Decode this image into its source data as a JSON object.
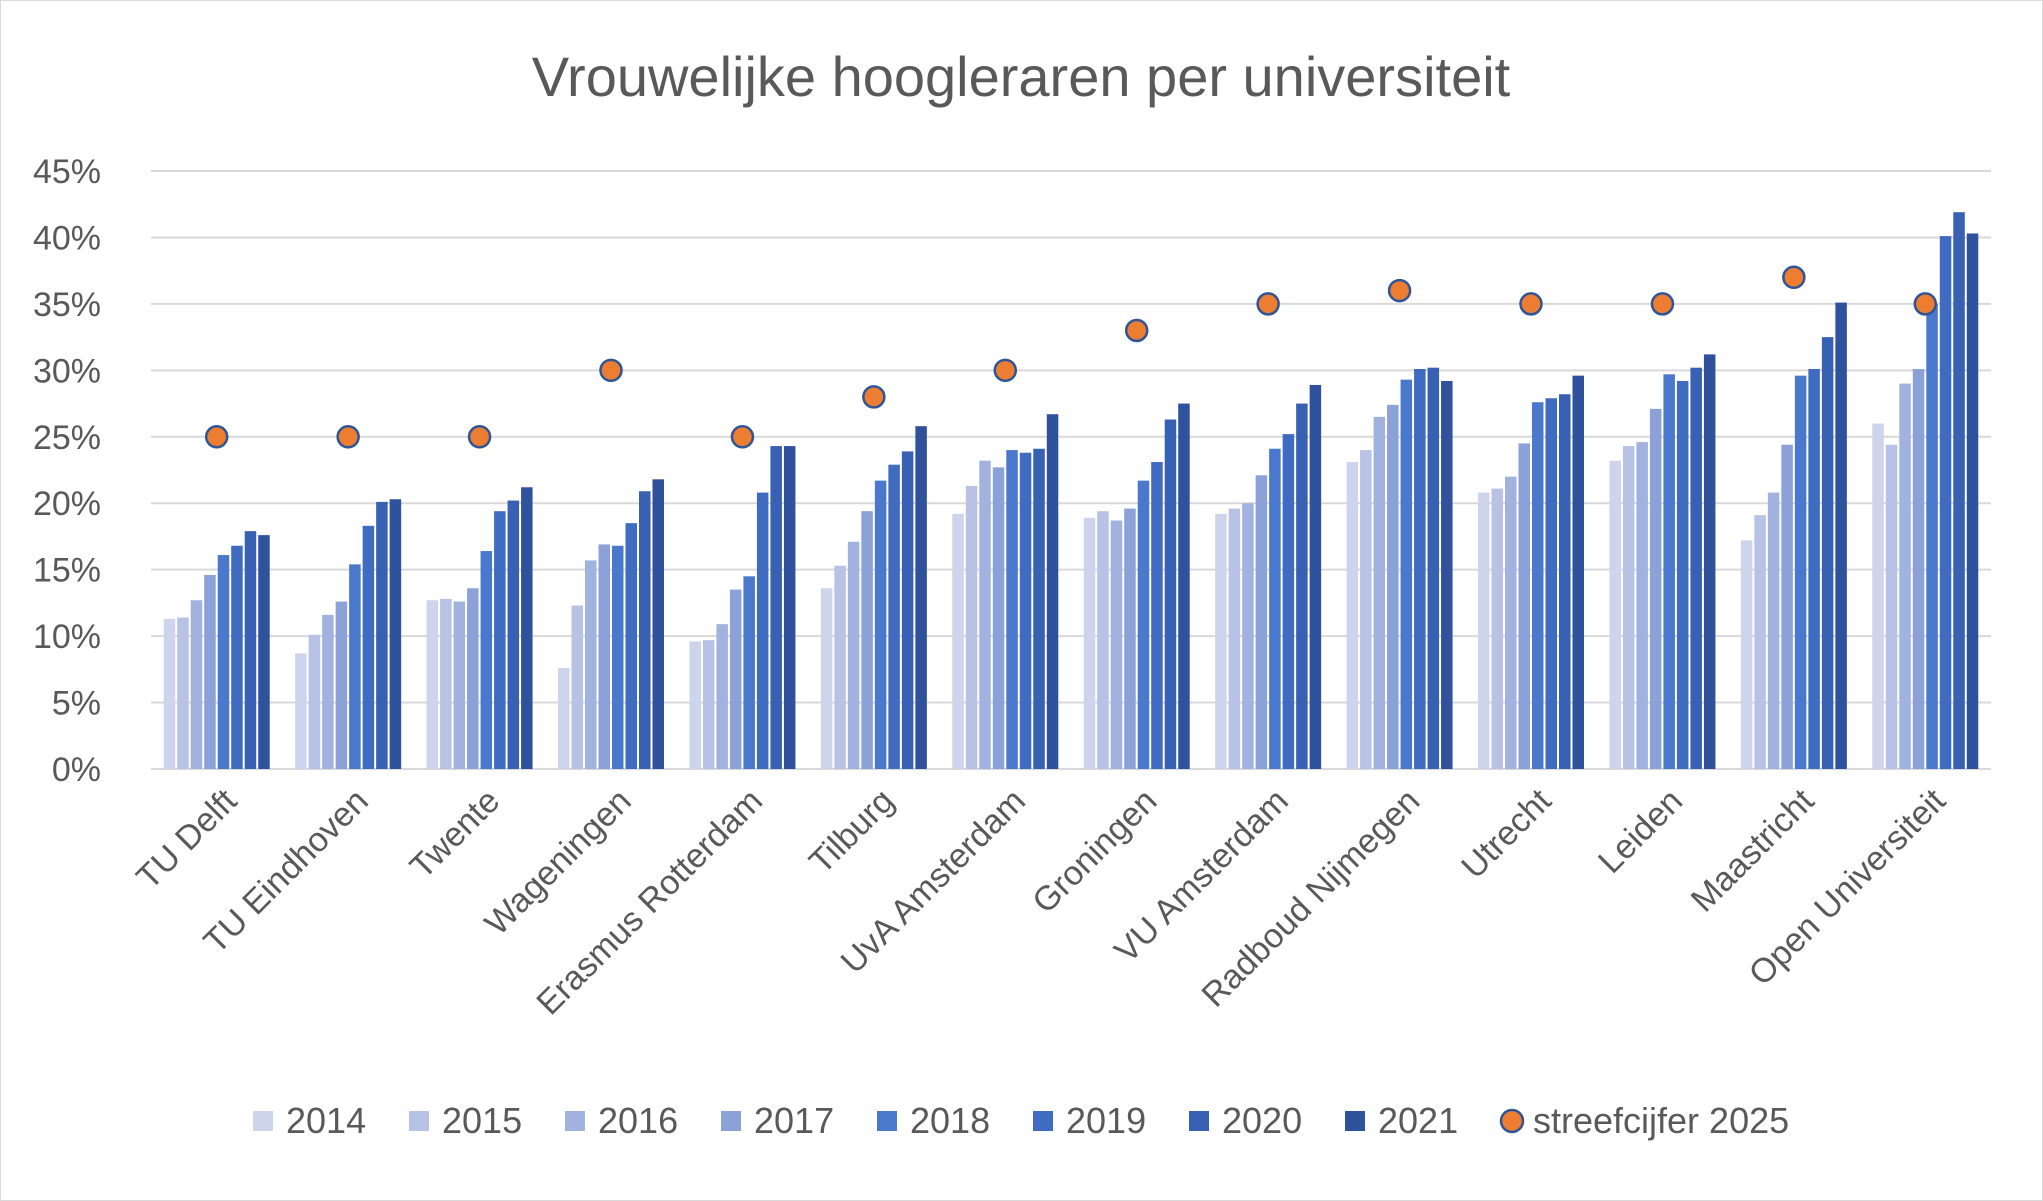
{
  "chart_data": {
    "type": "bar",
    "title": "Vrouwelijke hoogleraren per universiteit",
    "xlabel": "",
    "ylabel": "",
    "ylim": [
      0,
      45
    ],
    "y_ticks": [
      "0%",
      "5%",
      "10%",
      "15%",
      "20%",
      "25%",
      "30%",
      "35%",
      "40%",
      "45%"
    ],
    "grid": "horizontal",
    "legend_position": "bottom",
    "categories": [
      "TU Delft",
      "TU Eindhoven",
      "Twente",
      "Wageningen",
      "Erasmus Rotterdam",
      "Tilburg",
      "UvA Amsterdam",
      "Groningen",
      "VU Amsterdam",
      "Radboud Nijmegen",
      "Utrecht",
      "Leiden",
      "Maastricht",
      "Open Universiteit"
    ],
    "series": [
      {
        "name": "2014",
        "color": "#cdd4ec",
        "values": [
          11.3,
          8.7,
          12.7,
          7.6,
          9.6,
          13.6,
          19.2,
          18.9,
          19.2,
          23.1,
          20.8,
          23.2,
          17.2,
          26.0
        ]
      },
      {
        "name": "2015",
        "color": "#b7c2e5",
        "values": [
          11.4,
          10.1,
          12.8,
          12.3,
          9.7,
          15.3,
          21.3,
          19.4,
          19.6,
          24.0,
          21.1,
          24.3,
          19.1,
          24.4
        ]
      },
      {
        "name": "2016",
        "color": "#a2b2df",
        "values": [
          12.7,
          11.6,
          12.6,
          15.7,
          10.9,
          17.1,
          23.2,
          18.7,
          20.0,
          26.5,
          22.0,
          24.6,
          20.8,
          29.0
        ]
      },
      {
        "name": "2017",
        "color": "#8ca1d8",
        "values": [
          14.6,
          12.6,
          13.6,
          16.9,
          13.5,
          19.4,
          22.7,
          19.6,
          22.1,
          27.4,
          24.5,
          27.1,
          24.4,
          30.1
        ]
      },
      {
        "name": "2018",
        "color": "#4a78cc",
        "values": [
          16.1,
          15.4,
          16.4,
          16.8,
          14.5,
          21.7,
          24.0,
          21.7,
          24.1,
          29.3,
          27.6,
          29.7,
          29.6,
          35.0
        ]
      },
      {
        "name": "2019",
        "color": "#3f6bc0",
        "values": [
          16.8,
          18.3,
          19.4,
          18.5,
          20.8,
          22.9,
          23.8,
          23.1,
          25.2,
          30.1,
          27.9,
          29.2,
          30.1,
          40.1
        ]
      },
      {
        "name": "2020",
        "color": "#3860b3",
        "values": [
          17.9,
          20.1,
          20.2,
          20.9,
          24.3,
          23.9,
          24.1,
          26.3,
          27.5,
          30.2,
          28.2,
          30.2,
          32.5,
          41.9
        ]
      },
      {
        "name": "2021",
        "color": "#30529d",
        "values": [
          17.6,
          20.3,
          21.2,
          21.8,
          24.3,
          25.8,
          26.7,
          27.5,
          28.9,
          29.2,
          29.6,
          31.2,
          35.1,
          40.3
        ]
      }
    ],
    "targets": {
      "name": "streefcijfer 2025",
      "color": "#ed7d31",
      "stroke": "#2f5597",
      "values": [
        25,
        25,
        25,
        30,
        25,
        28,
        30,
        33,
        35,
        36,
        35,
        35,
        37,
        35
      ]
    }
  }
}
